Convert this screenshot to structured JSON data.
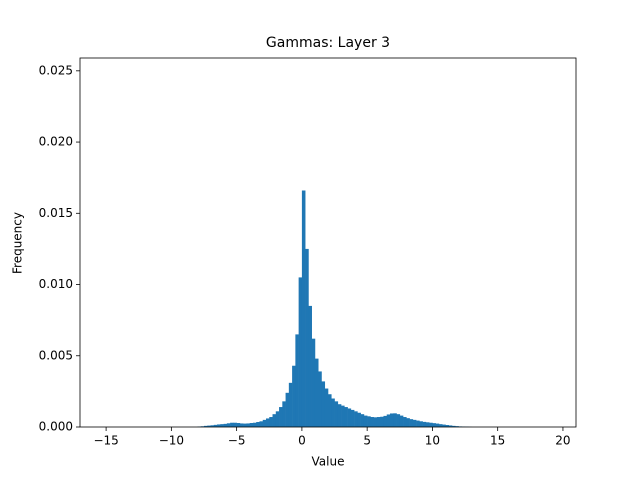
{
  "chart_data": {
    "type": "histogram",
    "title": "Gammas: Layer 3",
    "x_label": "Value",
    "y_label": "Frequency",
    "color": "#1f77b4",
    "bins": [
      -8,
      -7.75,
      -7.5,
      -7.25,
      -7,
      -6.75,
      -6.5,
      -6.25,
      -6,
      -5.75,
      -5.5,
      -5.25,
      -5,
      -4.75,
      -4.5,
      -4.25,
      -4,
      -3.75,
      -3.5,
      -3.25,
      -3,
      -2.75,
      -2.5,
      -2.25,
      -2,
      -1.75,
      -1.5,
      -1.25,
      -1,
      -0.75,
      -0.5,
      -0.25,
      0,
      0.25,
      0.5,
      0.75,
      1,
      1.25,
      1.5,
      1.75,
      2,
      2.25,
      2.5,
      2.75,
      3,
      3.25,
      3.5,
      3.75,
      4,
      4.25,
      4.5,
      4.75,
      5,
      5.25,
      5.5,
      5.75,
      6,
      6.25,
      6.5,
      6.75,
      7,
      7.25,
      7.5,
      7.75,
      8,
      8.25,
      8.5,
      8.75,
      9,
      9.25,
      9.5,
      9.75,
      10,
      10.25,
      10.5,
      10.75,
      11,
      11.25,
      11.5,
      11.75,
      12,
      12.25,
      12.5,
      12.75,
      13
    ],
    "values": [
      3e-05,
      5e-05,
      8e-05,
      0.0001,
      0.00012,
      0.00015,
      0.00018,
      0.0002,
      0.00022,
      0.00026,
      0.0003,
      0.0003,
      0.00028,
      0.00025,
      0.00024,
      0.00025,
      0.00028,
      0.0003,
      0.00035,
      0.0004,
      0.0005,
      0.0006,
      0.0007,
      0.0009,
      0.0011,
      0.0014,
      0.0018,
      0.0024,
      0.0031,
      0.0043,
      0.0065,
      0.0105,
      0.0166,
      0.0125,
      0.0085,
      0.0062,
      0.0048,
      0.0039,
      0.0032,
      0.0027,
      0.0023,
      0.002,
      0.0018,
      0.0016,
      0.0015,
      0.0014,
      0.0013,
      0.0012,
      0.0011,
      0.001,
      0.0009,
      0.0008,
      0.00075,
      0.0007,
      0.00068,
      0.0007,
      0.00072,
      0.00078,
      0.00088,
      0.00095,
      0.00096,
      0.0009,
      0.0008,
      0.0007,
      0.00062,
      0.00055,
      0.0005,
      0.00045,
      0.0004,
      0.00036,
      0.00033,
      0.0003,
      0.00027,
      0.00024,
      0.0002,
      0.00017,
      0.00014,
      0.00011,
      8e-05,
      6e-05,
      4e-05,
      3e-05,
      2e-05,
      1e-05
    ],
    "xlim": [
      -17,
      21
    ],
    "ylim": [
      0,
      0.0259
    ],
    "xticks": [
      {
        "value": -15,
        "label": "−15"
      },
      {
        "value": -10,
        "label": "−10"
      },
      {
        "value": -5,
        "label": "−5"
      },
      0,
      5,
      10,
      15,
      20
    ],
    "yticks": [
      {
        "value": 0,
        "label": "0.000"
      },
      {
        "value": 0.005,
        "label": "0.005"
      },
      {
        "value": 0.01,
        "label": "0.010"
      },
      {
        "value": 0.015,
        "label": "0.015"
      },
      {
        "value": 0.02,
        "label": "0.020"
      },
      {
        "value": 0.025,
        "label": "0.025"
      }
    ]
  }
}
